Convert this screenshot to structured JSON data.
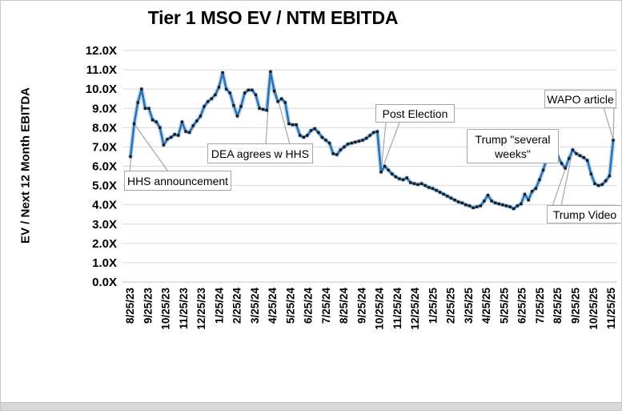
{
  "title": "Tier 1 MSO EV / NTM EBITDA",
  "y_axis_title": "EV / Next 12 Month EBITDA",
  "annotations": [
    {
      "id": "hhs",
      "label": "HHS announcement"
    },
    {
      "id": "dea",
      "label": "DEA agrees w HHS"
    },
    {
      "id": "post",
      "label": "Post Election"
    },
    {
      "id": "weeks",
      "label": "Trump \"several weeks\""
    },
    {
      "id": "wapo",
      "label": "WAPO article"
    },
    {
      "id": "video",
      "label": "Trump Video"
    }
  ],
  "colors": {
    "line": "#2E75B6",
    "line_halo": "#9DC3E6",
    "marker": "#1a1a1a",
    "gridline": "#d9d9d9",
    "axis_line": "#bfbfbf",
    "leader": "#a6a6a6"
  },
  "chart_data": {
    "type": "line",
    "title": "Tier 1 MSO EV / NTM EBITDA",
    "xlabel": "",
    "ylabel": "EV / Next 12 Month EBITDA",
    "ylim": [
      0,
      12
    ],
    "y_tick_labels": [
      "0.0X",
      "1.0X",
      "2.0X",
      "3.0X",
      "4.0X",
      "5.0X",
      "6.0X",
      "7.0X",
      "8.0X",
      "9.0X",
      "10.0X",
      "11.0X",
      "12.0X"
    ],
    "x_tick_labels": [
      "8/25/23",
      "9/25/23",
      "10/25/23",
      "11/25/23",
      "12/25/23",
      "1/25/24",
      "2/25/24",
      "3/25/24",
      "4/25/24",
      "5/25/24",
      "6/25/24",
      "7/25/24",
      "8/25/24",
      "9/25/24",
      "10/25/24",
      "11/25/24",
      "12/25/24",
      "1/25/25",
      "2/25/25",
      "3/25/25",
      "4/25/25",
      "5/25/25",
      "6/25/25",
      "7/25/25",
      "8/25/25",
      "9/25/25",
      "10/25/25",
      "11/25/25"
    ],
    "series_note": "EV / NTM EBITDA multiple, evenly spaced samples from 8/25/23 to 11/25/25",
    "values": [
      6.5,
      8.2,
      9.3,
      10.0,
      9.0,
      9.0,
      8.4,
      8.3,
      8.0,
      7.1,
      7.4,
      7.5,
      7.65,
      7.6,
      8.3,
      7.8,
      7.75,
      8.1,
      8.35,
      8.6,
      9.1,
      9.35,
      9.5,
      9.7,
      10.1,
      10.85,
      10.0,
      9.8,
      9.15,
      8.6,
      9.1,
      9.8,
      9.95,
      9.95,
      9.7,
      9.0,
      8.95,
      8.9,
      10.9,
      9.9,
      9.35,
      9.5,
      9.3,
      8.2,
      8.15,
      8.15,
      7.6,
      7.5,
      7.6,
      7.85,
      7.95,
      7.75,
      7.5,
      7.35,
      7.2,
      6.65,
      6.6,
      6.85,
      7.0,
      7.15,
      7.2,
      7.25,
      7.3,
      7.35,
      7.45,
      7.6,
      7.75,
      7.8,
      5.7,
      6.0,
      5.8,
      5.6,
      5.45,
      5.35,
      5.3,
      5.4,
      5.15,
      5.1,
      5.05,
      5.1,
      5.0,
      4.9,
      4.85,
      4.75,
      4.65,
      4.55,
      4.45,
      4.35,
      4.25,
      4.15,
      4.1,
      4.0,
      3.95,
      3.85,
      3.9,
      3.95,
      4.2,
      4.5,
      4.2,
      4.1,
      4.05,
      4.0,
      3.95,
      3.9,
      3.8,
      3.95,
      4.05,
      4.55,
      4.25,
      4.7,
      4.85,
      5.3,
      5.8,
      6.4,
      7.0,
      6.9,
      6.5,
      6.15,
      5.9,
      6.4,
      6.85,
      6.65,
      6.55,
      6.45,
      6.3,
      5.6,
      5.1,
      5.0,
      5.05,
      5.25,
      5.5,
      7.35
    ],
    "annotated_points": [
      {
        "label": "HHS announcement",
        "value": 8.2
      },
      {
        "label": "DEA agrees w HHS",
        "value": 10.9
      },
      {
        "label": "Post Election",
        "value": 5.7
      },
      {
        "label": "Trump \"several weeks\"",
        "value": 7.0
      },
      {
        "label": "Trump Video",
        "value": 5.9
      },
      {
        "label": "WAPO article",
        "value": 7.35
      }
    ],
    "legend": null,
    "grid": true
  }
}
